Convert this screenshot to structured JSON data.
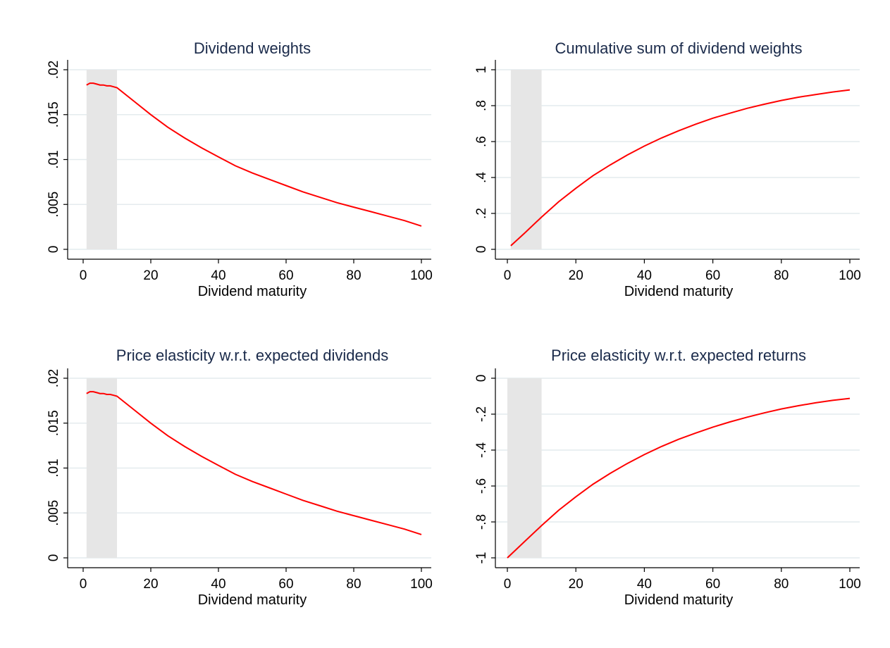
{
  "chart_data": [
    {
      "type": "line",
      "title": "Dividend weights",
      "xlabel": "Dividend maturity",
      "ylabel": "",
      "xlim": [
        0,
        100
      ],
      "ylim": [
        0,
        0.02
      ],
      "xticks": [
        "0",
        "20",
        "40",
        "60",
        "80",
        "100"
      ],
      "yticks": [
        "0",
        ".005",
        ".01",
        ".015",
        ".02"
      ],
      "ytick_values": [
        0,
        0.005,
        0.01,
        0.015,
        0.02
      ],
      "grid": true,
      "shaded_region": {
        "x_start": 1,
        "x_end": 10
      },
      "series": [
        {
          "color": "#ff0000",
          "x": [
            1,
            2,
            3,
            4,
            5,
            6,
            7,
            8,
            9,
            10,
            15,
            20,
            25,
            30,
            35,
            40,
            45,
            50,
            55,
            60,
            65,
            70,
            75,
            80,
            85,
            90,
            95,
            100
          ],
          "y": [
            0.0183,
            0.0185,
            0.0185,
            0.0184,
            0.0183,
            0.0183,
            0.0182,
            0.0182,
            0.0181,
            0.018,
            0.0165,
            0.015,
            0.0136,
            0.0124,
            0.0113,
            0.0103,
            0.0093,
            0.0085,
            0.0078,
            0.0071,
            0.0064,
            0.0058,
            0.0052,
            0.0047,
            0.0042,
            0.0037,
            0.0032,
            0.0026
          ]
        }
      ]
    },
    {
      "type": "line",
      "title": "Cumulative sum of dividend weights",
      "xlabel": "Dividend maturity",
      "ylabel": "",
      "xlim": [
        0,
        100
      ],
      "ylim": [
        0,
        1
      ],
      "xticks": [
        "0",
        "20",
        "40",
        "60",
        "80",
        "100"
      ],
      "yticks": [
        "0",
        ".2",
        ".4",
        ".6",
        ".8",
        "1"
      ],
      "ytick_values": [
        0,
        0.2,
        0.4,
        0.6,
        0.8,
        1
      ],
      "grid": true,
      "shaded_region": {
        "x_start": 1,
        "x_end": 10
      },
      "series": [
        {
          "color": "#ff0000",
          "x": [
            1,
            5,
            10,
            15,
            20,
            25,
            30,
            35,
            40,
            45,
            50,
            55,
            60,
            65,
            70,
            75,
            80,
            85,
            90,
            95,
            100
          ],
          "y": [
            0.02,
            0.09,
            0.18,
            0.265,
            0.34,
            0.41,
            0.47,
            0.525,
            0.575,
            0.62,
            0.66,
            0.697,
            0.73,
            0.758,
            0.785,
            0.808,
            0.829,
            0.847,
            0.862,
            0.876,
            0.888
          ]
        }
      ]
    },
    {
      "type": "line",
      "title": "Price elasticity w.r.t. expected dividends",
      "xlabel": "Dividend maturity",
      "ylabel": "",
      "xlim": [
        0,
        100
      ],
      "ylim": [
        0,
        0.02
      ],
      "xticks": [
        "0",
        "20",
        "40",
        "60",
        "80",
        "100"
      ],
      "yticks": [
        "0",
        ".005",
        ".01",
        ".015",
        ".02"
      ],
      "ytick_values": [
        0,
        0.005,
        0.01,
        0.015,
        0.02
      ],
      "grid": true,
      "shaded_region": {
        "x_start": 1,
        "x_end": 10
      },
      "series": [
        {
          "color": "#ff0000",
          "x": [
            1,
            2,
            3,
            4,
            5,
            6,
            7,
            8,
            9,
            10,
            15,
            20,
            25,
            30,
            35,
            40,
            45,
            50,
            55,
            60,
            65,
            70,
            75,
            80,
            85,
            90,
            95,
            100
          ],
          "y": [
            0.0183,
            0.0185,
            0.0185,
            0.0184,
            0.0183,
            0.0183,
            0.0182,
            0.0182,
            0.0181,
            0.018,
            0.0165,
            0.015,
            0.0136,
            0.0124,
            0.0113,
            0.0103,
            0.0093,
            0.0085,
            0.0078,
            0.0071,
            0.0064,
            0.0058,
            0.0052,
            0.0047,
            0.0042,
            0.0037,
            0.0032,
            0.0026
          ]
        }
      ]
    },
    {
      "type": "line",
      "title": "Price elasticity w.r.t. expected returns",
      "xlabel": "Dividend maturity",
      "ylabel": "",
      "xlim": [
        0,
        100
      ],
      "ylim": [
        -1,
        0
      ],
      "xticks": [
        "0",
        "20",
        "40",
        "60",
        "80",
        "100"
      ],
      "yticks": [
        "-1",
        "-.8",
        "-.6",
        "-.4",
        "-.2",
        "0"
      ],
      "ytick_values": [
        -1,
        -0.8,
        -0.6,
        -0.4,
        -0.2,
        0
      ],
      "grid": true,
      "shaded_region": {
        "x_start": 0,
        "x_end": 10
      },
      "series": [
        {
          "color": "#ff0000",
          "x": [
            0,
            5,
            10,
            15,
            20,
            25,
            30,
            35,
            40,
            45,
            50,
            55,
            60,
            65,
            70,
            75,
            80,
            85,
            90,
            95,
            100
          ],
          "y": [
            -1.0,
            -0.91,
            -0.82,
            -0.735,
            -0.66,
            -0.59,
            -0.53,
            -0.475,
            -0.425,
            -0.38,
            -0.34,
            -0.305,
            -0.272,
            -0.243,
            -0.217,
            -0.193,
            -0.171,
            -0.153,
            -0.137,
            -0.123,
            -0.112
          ]
        }
      ]
    }
  ]
}
